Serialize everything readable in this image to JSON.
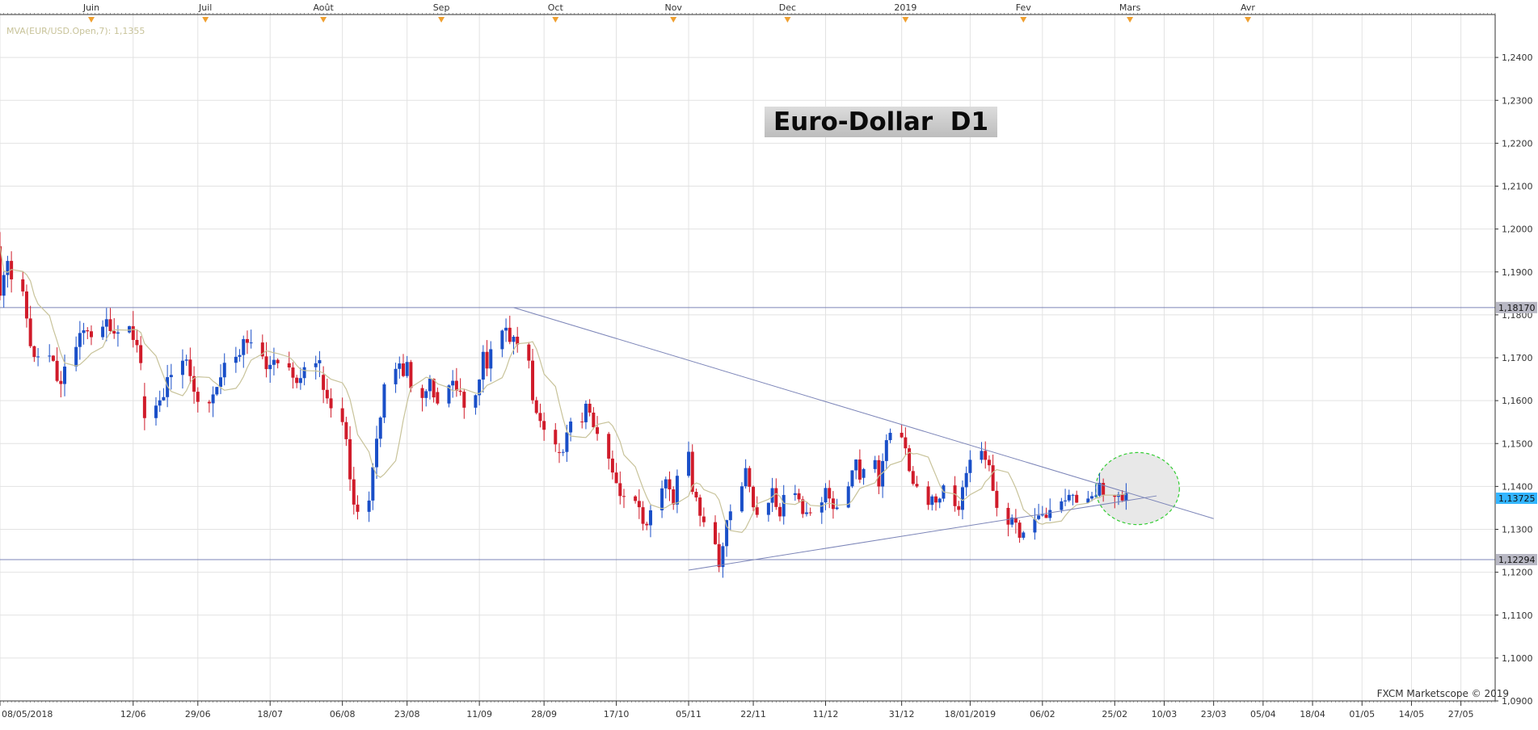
{
  "chart_data": {
    "type": "candlestick",
    "title": "Euro-Dollar  D1",
    "indicator_label": "MVA(EUR/USD.Open,7): 1,1355",
    "credit": "FXCM Marketscope © 2019",
    "ylim": [
      1.09,
      1.25
    ],
    "y_ticks": [
      "1,0900",
      "1,1000",
      "1,1100",
      "1,1200",
      "1,1300",
      "1,1400",
      "1,1500",
      "1,1600",
      "1,1700",
      "1,1800",
      "1,1900",
      "1,2000",
      "1,2100",
      "1,2200",
      "1,2300",
      "1,2400"
    ],
    "y_tick_values": [
      1.09,
      1.1,
      1.11,
      1.12,
      1.13,
      1.14,
      1.15,
      1.16,
      1.17,
      1.18,
      1.19,
      1.2,
      1.21,
      1.22,
      1.23,
      1.24
    ],
    "x_start_date": "2018-05-08",
    "x_end_date": "2019-06-05",
    "x_ticks": [
      {
        "label": "08/05/2018",
        "date": "2018-05-08"
      },
      {
        "label": "12/06",
        "date": "2018-06-12"
      },
      {
        "label": "29/06",
        "date": "2018-06-29"
      },
      {
        "label": "18/07",
        "date": "2018-07-18"
      },
      {
        "label": "06/08",
        "date": "2018-08-06"
      },
      {
        "label": "23/08",
        "date": "2018-08-23"
      },
      {
        "label": "11/09",
        "date": "2018-09-11"
      },
      {
        "label": "28/09",
        "date": "2018-09-28"
      },
      {
        "label": "17/10",
        "date": "2018-10-17"
      },
      {
        "label": "05/11",
        "date": "2018-11-05"
      },
      {
        "label": "22/11",
        "date": "2018-11-22"
      },
      {
        "label": "11/12",
        "date": "2018-12-11"
      },
      {
        "label": "31/12",
        "date": "2018-12-31"
      },
      {
        "label": "18/01/2019",
        "date": "2019-01-18"
      },
      {
        "label": "06/02",
        "date": "2019-02-06"
      },
      {
        "label": "25/02",
        "date": "2019-02-25"
      },
      {
        "label": "10/03",
        "date": "2019-03-10"
      },
      {
        "label": "23/03",
        "date": "2019-03-23"
      },
      {
        "label": "05/04",
        "date": "2019-04-05"
      },
      {
        "label": "18/04",
        "date": "2019-04-18"
      },
      {
        "label": "01/05",
        "date": "2019-05-01"
      },
      {
        "label": "14/05",
        "date": "2019-05-14"
      },
      {
        "label": "27/05",
        "date": "2019-05-27"
      }
    ],
    "month_ticks": [
      {
        "label": "Juin",
        "date": "2018-06-01"
      },
      {
        "label": "Juil",
        "date": "2018-07-01"
      },
      {
        "label": "Août",
        "date": "2018-08-01"
      },
      {
        "label": "Sep",
        "date": "2018-09-01"
      },
      {
        "label": "Oct",
        "date": "2018-10-01"
      },
      {
        "label": "Nov",
        "date": "2018-11-01"
      },
      {
        "label": "Dec",
        "date": "2018-12-01"
      },
      {
        "label": "2019",
        "date": "2019-01-01"
      },
      {
        "label": "Fev",
        "date": "2019-02-01"
      },
      {
        "label": "Mars",
        "date": "2019-03-01"
      },
      {
        "label": "Avr",
        "date": "2019-04-01"
      }
    ],
    "price_labels": [
      {
        "value": 1.1817,
        "text": "1,18170",
        "bg": "#b8b8c4"
      },
      {
        "value": 1.13725,
        "text": "1,13725",
        "bg": "#33b5ff"
      },
      {
        "value": 1.12294,
        "text": "1,12294",
        "bg": "#b8b8c4"
      }
    ],
    "hlines": [
      {
        "value": 1.1817,
        "color": "#7c85b8"
      },
      {
        "value": 1.12294,
        "color": "#7c85b8"
      }
    ],
    "trendlines": [
      {
        "x1": "2018-09-20",
        "y1": 1.1817,
        "x2": "2019-03-23",
        "y2": 1.1325,
        "color": "#7c85b8"
      },
      {
        "x1": "2018-11-05",
        "y1": 1.1205,
        "x2": "2019-03-08",
        "y2": 1.1378,
        "color": "#7c85b8"
      }
    ],
    "ellipse": {
      "cx": "2019-03-03",
      "cy": 1.1395,
      "rx_days": 11,
      "ry": 0.0084,
      "stroke": "#33cc33",
      "fill": "#e8e8e8"
    },
    "colors": {
      "up": "#1a4fc8",
      "down": "#d01b2a",
      "ma": "#c8c39a",
      "grid": "#e2e2e2",
      "axis": "#333333"
    },
    "candle_sets": [
      {
        "from": "2018-05-08",
        "to": "2018-06-14",
        "start": 1.196,
        "vol": 0.0052,
        "seed": 11,
        "anchors": [
          1.184,
          1.195,
          1.187,
          1.179,
          1.169,
          1.171,
          1.168,
          1.162,
          1.171,
          1.175,
          1.177,
          1.175,
          1.179,
          1.176,
          1.178,
          1.174,
          1.17
        ]
      },
      {
        "from": "2018-06-15",
        "to": "2018-07-31",
        "start": 1.161,
        "vol": 0.0048,
        "seed": 23,
        "anchors": [
          1.157,
          1.159,
          1.162,
          1.166,
          1.17,
          1.167,
          1.163,
          1.158,
          1.162,
          1.166,
          1.168,
          1.171,
          1.175,
          1.173,
          1.169,
          1.168,
          1.17,
          1.168,
          1.165,
          1.164,
          1.17,
          1.168
        ]
      },
      {
        "from": "2018-08-01",
        "to": "2018-08-30",
        "start": 1.166,
        "vol": 0.0045,
        "seed": 37,
        "anchors": [
          1.162,
          1.16,
          1.157,
          1.154,
          1.15,
          1.142,
          1.135,
          1.134,
          1.138,
          1.144,
          1.15,
          1.157,
          1.163,
          1.168,
          1.17,
          1.166,
          1.168,
          1.162,
          1.16,
          1.161,
          1.164,
          1.162
        ]
      },
      {
        "from": "2018-08-31",
        "to": "2018-10-01",
        "start": 1.162,
        "vol": 0.0044,
        "seed": 51,
        "anchors": [
          1.16,
          1.163,
          1.165,
          1.162,
          1.161,
          1.158,
          1.162,
          1.166,
          1.171,
          1.168,
          1.172,
          1.176,
          1.178,
          1.174,
          1.174,
          1.172,
          1.168,
          1.16,
          1.156,
          1.155,
          1.152,
          1.15
        ]
      },
      {
        "from": "2018-10-02",
        "to": "2018-11-08",
        "start": 1.148,
        "vol": 0.0042,
        "seed": 67,
        "anchors": [
          1.147,
          1.149,
          1.152,
          1.156,
          1.156,
          1.16,
          1.158,
          1.154,
          1.15,
          1.146,
          1.143,
          1.14,
          1.138,
          1.136,
          1.135,
          1.133,
          1.131,
          1.134,
          1.139,
          1.141,
          1.14,
          1.136,
          1.141,
          1.148,
          1.14,
          1.137,
          1.134
        ]
      },
      {
        "from": "2018-11-09",
        "to": "2018-12-20",
        "start": 1.133,
        "vol": 0.004,
        "seed": 79,
        "anchors": [
          1.132,
          1.126,
          1.122,
          1.127,
          1.131,
          1.135,
          1.141,
          1.145,
          1.139,
          1.135,
          1.133,
          1.136,
          1.139,
          1.135,
          1.133,
          1.137,
          1.139,
          1.136,
          1.134,
          1.133,
          1.135,
          1.137,
          1.139,
          1.138,
          1.134,
          1.136,
          1.14,
          1.144,
          1.147,
          1.142
        ]
      },
      {
        "from": "2018-12-21",
        "to": "2019-02-28",
        "start": 1.142,
        "vol": 0.004,
        "seed": 83,
        "anchors": [
          1.144,
          1.146,
          1.14,
          1.148,
          1.152,
          1.153,
          1.15,
          1.147,
          1.143,
          1.141,
          1.138,
          1.136,
          1.137,
          1.137,
          1.14,
          1.138,
          1.132,
          1.14,
          1.143,
          1.145,
          1.148,
          1.146,
          1.144,
          1.14,
          1.135,
          1.131,
          1.133,
          1.13,
          1.128,
          1.131,
          1.133,
          1.135,
          1.134,
          1.133,
          1.135,
          1.136,
          1.138,
          1.138,
          1.137,
          1.136,
          1.137,
          1.138,
          1.14,
          1.139,
          1.138,
          1.137,
          1.137,
          1.1372
        ]
      }
    ]
  }
}
